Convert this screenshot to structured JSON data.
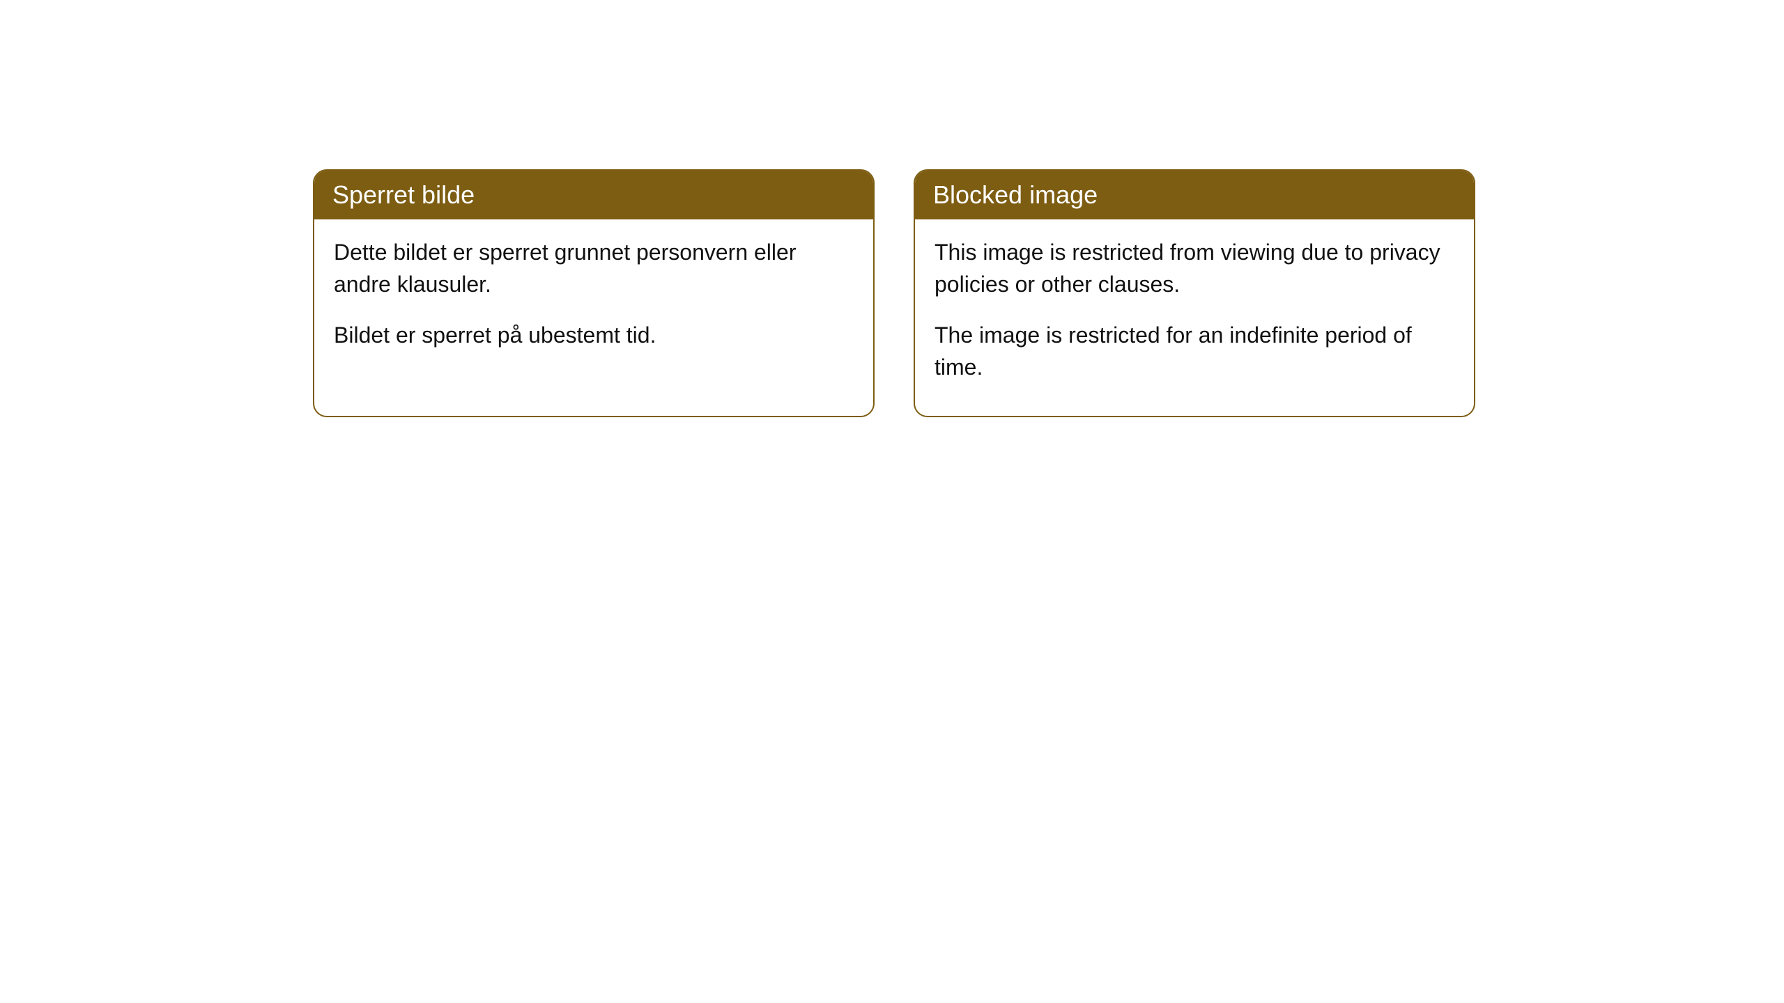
{
  "cards": [
    {
      "header": "Sperret bilde",
      "paragraph1": "Dette bildet er sperret grunnet personvern eller andre klausuler.",
      "paragraph2": "Bildet er sperret på ubestemt tid."
    },
    {
      "header": "Blocked image",
      "paragraph1": "This image is restricted from viewing due to privacy policies or other clauses.",
      "paragraph2": "The image is restricted for an indefinite period of time."
    }
  ],
  "styling": {
    "header_bg_color": "#7d5d12",
    "header_text_color": "#ffffff",
    "border_color": "#7d5d12",
    "body_text_color": "#111111",
    "background_color": "#ffffff",
    "border_radius": 20,
    "header_fontsize": 36,
    "body_fontsize": 32
  }
}
